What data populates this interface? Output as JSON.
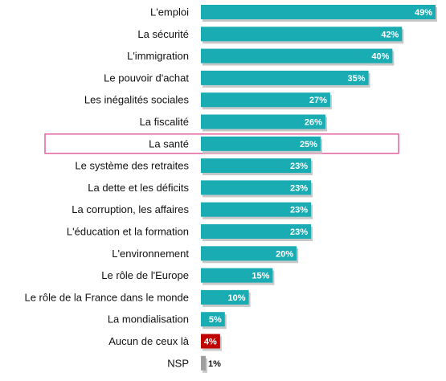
{
  "chart_data": {
    "type": "bar",
    "orientation": "horizontal",
    "categories": [
      "L'emploi",
      "La sécurité",
      "L'immigration",
      "Le pouvoir d'achat",
      "Les inégalités sociales",
      "La fiscalité",
      "La santé",
      "Le système des retraites",
      "La dette et les déficits",
      "La corruption, les affaires",
      "L'éducation et la formation",
      "L'environnement",
      "Le rôle de l'Europe",
      "Le rôle de la France dans le monde",
      "La mondialisation",
      "Aucun de ceux là",
      "NSP"
    ],
    "values": [
      49,
      42,
      40,
      35,
      27,
      26,
      25,
      23,
      23,
      23,
      23,
      20,
      15,
      10,
      5,
      4,
      1
    ],
    "value_labels": [
      "49%",
      "42%",
      "40%",
      "35%",
      "27%",
      "26%",
      "25%",
      "23%",
      "23%",
      "23%",
      "23%",
      "20%",
      "15%",
      "10%",
      "5%",
      "4%",
      "1%"
    ],
    "colors": {
      "default": "#1aacb3",
      "Aucun de ceux là": "#c00000",
      "NSP": "#9e9e9e",
      "highlight_border": "#e0488f",
      "shadow": "#c8c8c8"
    },
    "highlighted_category": "La santé",
    "xlim": [
      0,
      49
    ],
    "grid": false,
    "legend": "none"
  }
}
